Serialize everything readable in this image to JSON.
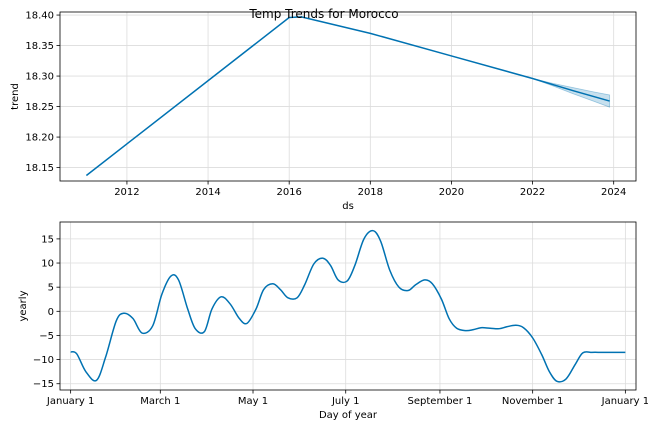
{
  "title": "Temp Trends for Morocco",
  "colors": {
    "line": "#0072B2",
    "band": "#0072B2",
    "grid": "#dcdcdc",
    "frame": "#000000"
  },
  "chart_data": [
    {
      "type": "line",
      "xlabel": "ds",
      "ylabel": "trend",
      "xlim": [
        2010.35,
        2024.55
      ],
      "ylim": [
        18.128,
        18.405
      ],
      "x_ticks": [
        2012,
        2014,
        2016,
        2018,
        2020,
        2022,
        2024
      ],
      "x_tick_labels": [
        "2012",
        "2014",
        "2016",
        "2018",
        "2020",
        "2022",
        "2024"
      ],
      "y_ticks": [
        18.15,
        18.2,
        18.25,
        18.3,
        18.35,
        18.4
      ],
      "y_tick_labels": [
        "18.15",
        "18.20",
        "18.25",
        "18.30",
        "18.35",
        "18.40"
      ],
      "grid": true,
      "series": [
        {
          "x": [
            2011.0,
            2016.0,
            2016.3,
            2018.0,
            2020.0,
            2022.0,
            2023.0,
            2023.9
          ],
          "y": [
            18.137,
            18.396,
            18.397,
            18.37,
            18.333,
            18.296,
            18.276,
            18.259
          ]
        }
      ],
      "uncertainty": {
        "x": [
          2022.0,
          2022.5,
          2023.0,
          2023.5,
          2023.9
        ],
        "lower": [
          18.296,
          18.284,
          18.271,
          18.259,
          18.249
        ],
        "upper": [
          18.296,
          18.288,
          18.281,
          18.274,
          18.269
        ]
      }
    },
    {
      "type": "line",
      "xlabel": "Day of year",
      "ylabel": "yearly",
      "xlim": [
        -7,
        372
      ],
      "ylim": [
        -16.3,
        18.5
      ],
      "x_ticks": [
        0,
        59,
        120,
        181,
        243,
        304,
        365
      ],
      "x_tick_labels": [
        "January 1",
        "March 1",
        "May 1",
        "July 1",
        "September 1",
        "November 1",
        "January 1"
      ],
      "y_ticks": [
        -15,
        -10,
        -5,
        0,
        5,
        10,
        15
      ],
      "y_tick_labels": [
        "−15",
        "−10",
        "−5",
        "0",
        "5",
        "10",
        "15"
      ],
      "grid": true,
      "series": [
        {
          "x": [
            0,
            4,
            10,
            17,
            23,
            30,
            35,
            41,
            47,
            54,
            60,
            66,
            71,
            77,
            82,
            88,
            93,
            99,
            105,
            111,
            116,
            122,
            127,
            133,
            138,
            143,
            149,
            154,
            160,
            166,
            171,
            176,
            182,
            187,
            193,
            199,
            204,
            210,
            216,
            222,
            227,
            233,
            238,
            244,
            249,
            254,
            260,
            265,
            270,
            276,
            282,
            287,
            293,
            298,
            304,
            310,
            315,
            320,
            326,
            332,
            337,
            343,
            349,
            354,
            360,
            365
          ],
          "y": [
            -8.4,
            -8.8,
            -12.5,
            -14.3,
            -9.5,
            -2.0,
            -0.4,
            -1.5,
            -4.5,
            -3.0,
            3.5,
            7.3,
            6.5,
            0.5,
            -3.6,
            -4.2,
            0.5,
            3.0,
            1.5,
            -1.5,
            -2.5,
            0.5,
            4.5,
            5.7,
            4.5,
            2.8,
            2.8,
            5.5,
            9.8,
            11.0,
            9.5,
            6.5,
            6.3,
            9.5,
            15.0,
            16.7,
            14.5,
            8.5,
            5.0,
            4.3,
            5.5,
            6.5,
            5.7,
            2.5,
            -1.5,
            -3.5,
            -4.0,
            -3.8,
            -3.4,
            -3.5,
            -3.6,
            -3.2,
            -2.9,
            -3.4,
            -5.5,
            -9.0,
            -12.5,
            -14.5,
            -14.0,
            -11.0,
            -8.6,
            -8.5,
            -8.5,
            -8.5,
            -8.5,
            -8.5
          ]
        }
      ]
    }
  ]
}
